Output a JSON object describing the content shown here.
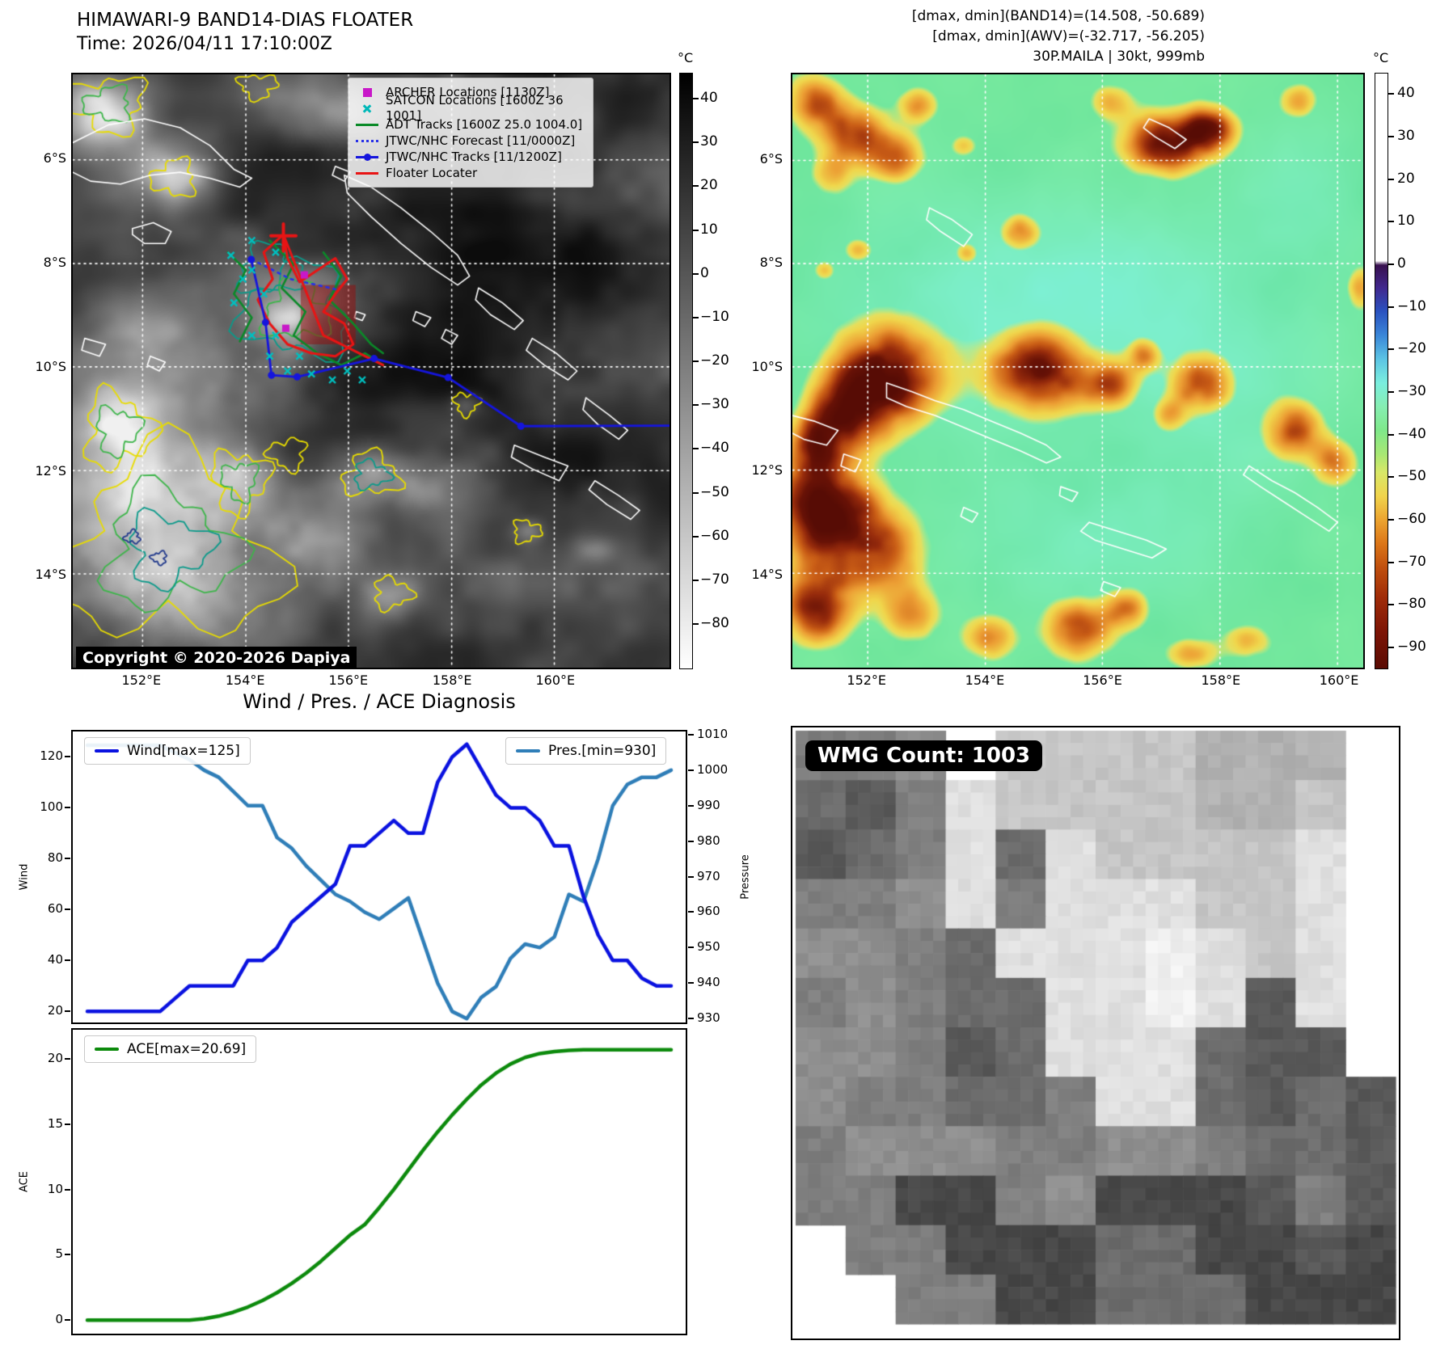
{
  "band14": {
    "title": "HIMAWARI-9 BAND14-DIAS FLOATER",
    "time": "Time: 2026/04/11 17:10:00Z",
    "copyright": "Copyright © 2020-2026 Dapiya",
    "lat_ticks": [
      "6°S",
      "8°S",
      "10°S",
      "12°S",
      "14°S"
    ],
    "lon_ticks": [
      "152°E",
      "154°E",
      "156°E",
      "158°E",
      "160°E"
    ],
    "colorbar": {
      "unit": "°C",
      "ticks": [
        "40",
        "30",
        "20",
        "10",
        "0",
        "−10",
        "−20",
        "−30",
        "−40",
        "−50",
        "−60",
        "−70",
        "−80"
      ]
    },
    "legend": [
      {
        "label": "ARCHER Locations [1130Z]",
        "type": "square",
        "color": "#c818c8"
      },
      {
        "label": "SATCON Locations [1600Z 36 1001]",
        "type": "x",
        "color": "#00b8b8"
      },
      {
        "label": "ADT Tracks [1600Z 25.0 1004.0]",
        "type": "line",
        "color": "#0a8a28"
      },
      {
        "label": "JTWC/NHC Forecast [11/0000Z]",
        "type": "dotted",
        "color": "#2830e8"
      },
      {
        "label": "JTWC/NHC Tracks [11/1200Z]",
        "type": "linedot",
        "color": "#1515dd"
      },
      {
        "label": "Floater Locater",
        "type": "line",
        "color": "#e81414"
      }
    ],
    "tracks": {
      "jtwc": [
        [
          0.299,
          0.312
        ],
        [
          0.323,
          0.418
        ],
        [
          0.333,
          0.507
        ],
        [
          0.376,
          0.51
        ],
        [
          0.505,
          0.479
        ],
        [
          0.629,
          0.511
        ],
        [
          0.751,
          0.593
        ],
        [
          1.0,
          0.592
        ]
      ],
      "forecast": [
        [
          0.3,
          0.312
        ],
        [
          0.365,
          0.345
        ],
        [
          0.44,
          0.362
        ]
      ],
      "floater": [
        [
          0.353,
          0.27
        ],
        [
          0.32,
          0.3
        ],
        [
          0.335,
          0.345
        ],
        [
          0.31,
          0.38
        ],
        [
          0.33,
          0.42
        ],
        [
          0.36,
          0.455
        ],
        [
          0.4,
          0.47
        ],
        [
          0.44,
          0.475
        ],
        [
          0.47,
          0.455
        ],
        [
          0.455,
          0.42
        ],
        [
          0.42,
          0.4
        ],
        [
          0.44,
          0.37
        ],
        [
          0.46,
          0.345
        ],
        [
          0.44,
          0.31
        ],
        [
          0.41,
          0.33
        ],
        [
          0.38,
          0.35
        ],
        [
          0.36,
          0.31
        ],
        [
          0.353,
          0.27
        ],
        [
          0.42,
          0.44
        ],
        [
          0.47,
          0.465
        ],
        [
          0.52,
          0.49
        ]
      ],
      "adt": [
        [
          [
            0.26,
            0.3
          ],
          [
            0.29,
            0.33
          ],
          [
            0.27,
            0.37
          ],
          [
            0.3,
            0.41
          ],
          [
            0.28,
            0.45
          ]
        ],
        [
          [
            0.33,
            0.28
          ],
          [
            0.37,
            0.32
          ],
          [
            0.35,
            0.36
          ],
          [
            0.39,
            0.4
          ],
          [
            0.37,
            0.44
          ],
          [
            0.41,
            0.47
          ],
          [
            0.45,
            0.49
          ],
          [
            0.49,
            0.47
          ],
          [
            0.52,
            0.49
          ]
        ],
        [
          [
            0.42,
            0.3
          ],
          [
            0.45,
            0.34
          ],
          [
            0.43,
            0.38
          ],
          [
            0.47,
            0.42
          ],
          [
            0.5,
            0.455
          ],
          [
            0.52,
            0.47
          ]
        ]
      ],
      "satcon": [
        [
          0.265,
          0.305
        ],
        [
          0.285,
          0.345
        ],
        [
          0.27,
          0.385
        ],
        [
          0.3,
          0.33
        ],
        [
          0.32,
          0.37
        ],
        [
          0.3,
          0.44
        ],
        [
          0.33,
          0.475
        ],
        [
          0.36,
          0.5
        ],
        [
          0.4,
          0.505
        ],
        [
          0.435,
          0.515
        ],
        [
          0.46,
          0.5
        ],
        [
          0.485,
          0.515
        ],
        [
          0.34,
          0.44
        ],
        [
          0.38,
          0.475
        ],
        [
          0.3,
          0.28
        ],
        [
          0.34,
          0.3
        ]
      ],
      "archer": [
        [
          0.388,
          0.338
        ],
        [
          0.357,
          0.428
        ]
      ]
    }
  },
  "awv": {
    "line1": "[dmax, dmin](BAND14)=(14.508, -50.689)",
    "line2": "[dmax, dmin](AWV)=(-32.717, -56.205)",
    "line3": "30P.MAILA | 30kt, 999mb",
    "lat_ticks": [
      "6°S",
      "8°S",
      "10°S",
      "12°S",
      "14°S"
    ],
    "lon_ticks": [
      "152°E",
      "154°E",
      "156°E",
      "158°E",
      "160°E"
    ],
    "colorbar": {
      "unit": "°C",
      "ticks": [
        "40",
        "30",
        "20",
        "10",
        "0",
        "−10",
        "−20",
        "−30",
        "−40",
        "−50",
        "−60",
        "−70",
        "−80",
        "−90"
      ]
    }
  },
  "diagnosis": {
    "title": "Wind / Pres. / ACE Diagnosis",
    "wind_label": "Wind[max=125]",
    "pres_label": "Pres.[min=930]",
    "ace_label": "ACE[max=20.69]",
    "ylabel_wind": "Wind",
    "ylabel_pressure": "Pressure",
    "ylabel_ace": "ACE",
    "wind_ticks": [
      "20",
      "40",
      "60",
      "80",
      "100",
      "120"
    ],
    "pressure_ticks": [
      "930",
      "940",
      "950",
      "960",
      "970",
      "980",
      "990",
      "1000",
      "1010"
    ],
    "ace_ticks": [
      "0",
      "5",
      "10",
      "15",
      "20"
    ]
  },
  "wmg": {
    "label": "WMG Count: 1003",
    "palette": {
      "1": 72,
      "2": 90,
      "3": 109,
      "4": 127,
      "5": 143,
      "6": 160,
      "7": 178,
      "8": 198,
      "9": 224,
      "F": 240
    },
    "rows": [
      "445W8888777W",
      "32498888778W",
      "23493988889W",
      "44594999889W",
      "5543999F989W",
      "4543399F929W",
      "55423999322W",
      "544334993232",
      "455544554332",
      "441145111242",
      "W44111331121",
      "WW4411333111"
    ]
  },
  "chart_data": [
    {
      "type": "line",
      "name": "Wind",
      "color": "#0a12e0",
      "ylim": [
        15.6,
        130.0
      ],
      "values": [
        20,
        20,
        20,
        20,
        20,
        20,
        25,
        30,
        30,
        30,
        30,
        40,
        40,
        45,
        55,
        60,
        65,
        70,
        85,
        85,
        90,
        95,
        90,
        90,
        110,
        120,
        125,
        115,
        105,
        100,
        100,
        95,
        85,
        85,
        65,
        50,
        40,
        40,
        33,
        30,
        30
      ]
    },
    {
      "type": "line",
      "name": "Pressure",
      "color": "#2f7eb8",
      "ylim": [
        928.9,
        1010.9
      ],
      "values": [
        1007,
        1007,
        1007,
        1007,
        1007,
        1007,
        1005,
        1003,
        1000,
        998,
        994,
        990,
        990,
        981,
        978,
        973,
        969,
        965,
        963,
        960,
        958,
        961,
        964,
        952,
        940,
        932,
        930,
        936,
        939,
        947,
        951,
        950,
        953,
        965,
        963,
        975,
        990,
        996,
        998,
        998,
        1000
      ]
    },
    {
      "type": "line",
      "name": "ACE",
      "color": "#0c8a0c",
      "ylim": [
        -1.04,
        22.22
      ],
      "values": [
        0,
        0,
        0,
        0,
        0,
        0,
        0,
        0,
        0.1,
        0.3,
        0.6,
        1.0,
        1.5,
        2.1,
        2.8,
        3.6,
        4.5,
        5.5,
        6.5,
        7.3,
        8.6,
        10.0,
        11.5,
        13.0,
        14.4,
        15.7,
        16.9,
        18.0,
        18.9,
        19.6,
        20.1,
        20.4,
        20.55,
        20.64,
        20.69,
        20.69,
        20.69,
        20.69,
        20.69,
        20.69,
        20.69
      ]
    }
  ]
}
